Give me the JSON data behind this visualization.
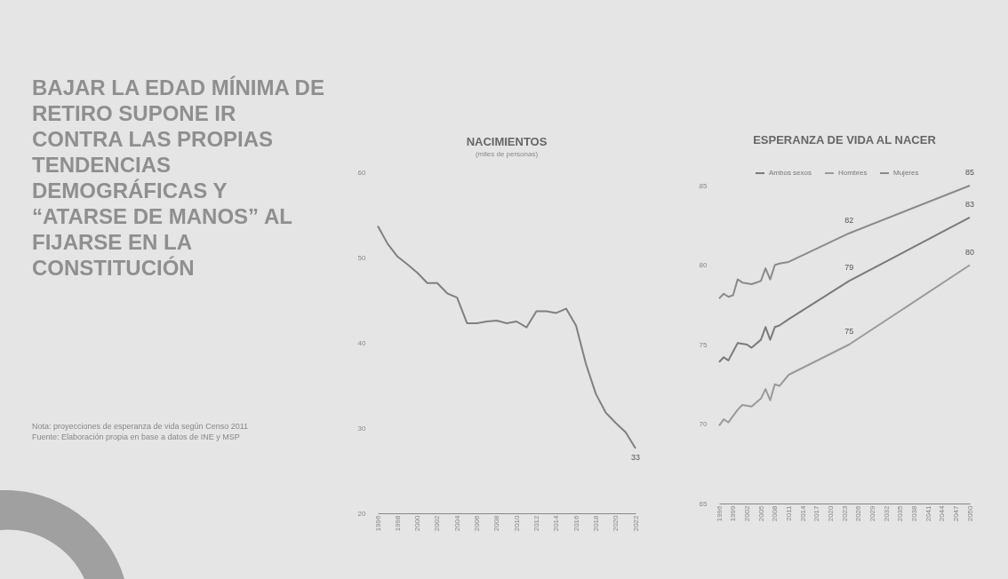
{
  "chart_data": [
    {
      "type": "other",
      "title": "BAJAR LA EDAD MÍNIMA DE RETIRO SUPONE IR CONTRA LAS PROPIAS TENDENCIAS DEMOGRÁFICAS Y “ATARSE DE MANOS” AL FIJARSE EN LA CONSTITUCIÓN",
      "annotations": [
        "Nota: proyecciones de esperanza de vida según Censo 2011",
        "Fuente: Elaboración propia en base a datos de INE y MSP"
      ]
    },
    {
      "type": "line",
      "title": "NACIMIENTOS",
      "subtitle": "(miles de personas)",
      "color": "#808080",
      "x": [
        1996,
        1997,
        1998,
        1999,
        2000,
        2001,
        2002,
        2003,
        2004,
        2005,
        2006,
        2007,
        2008,
        2009,
        2010,
        2011,
        2012,
        2013,
        2014,
        2015,
        2016,
        2017,
        2018,
        2019,
        2020,
        2021,
        2022
      ],
      "values": [
        53.7,
        51.6,
        50.1,
        49.2,
        48.2,
        47.0,
        47.0,
        45.8,
        45.3,
        42.3,
        42.3,
        42.5,
        42.6,
        42.3,
        42.5,
        41.8,
        43.7,
        43.7,
        43.5,
        44.0,
        42.0,
        37.5,
        34.0,
        31.8,
        30.6,
        29.5,
        27.6
      ],
      "xlim": [
        1996,
        2022
      ],
      "xticks": [
        1996,
        1998,
        2000,
        2002,
        2004,
        2006,
        2008,
        2010,
        2012,
        2014,
        2016,
        2018,
        2020,
        2022
      ],
      "ylim": [
        20,
        60
      ],
      "yticks": [
        20,
        30,
        40,
        50,
        60
      ],
      "annotations": [
        {
          "text": "33",
          "x": 2022,
          "y": 27.6
        }
      ]
    },
    {
      "type": "line",
      "title": "ESPERANZA DE VIDA AL NACER",
      "legend": "top",
      "xlim": [
        1996,
        2050
      ],
      "xticks": [
        1996,
        1999,
        2002,
        2005,
        2008,
        2011,
        2014,
        2017,
        2020,
        2023,
        2026,
        2029,
        2032,
        2035,
        2038,
        2041,
        2044,
        2047,
        2050
      ],
      "ylim": [
        65,
        85
      ],
      "yticks": [
        65,
        70,
        75,
        80,
        85
      ],
      "series": [
        {
          "name": "Ambos sexos",
          "color": "#7a7a7a",
          "x": [
            1996,
            1997,
            1998,
            2000,
            2002,
            2003,
            2005,
            2006,
            2007,
            2008,
            2009,
            2011,
            2024,
            2050
          ],
          "values": [
            73.9,
            74.2,
            74.0,
            75.1,
            75.0,
            74.8,
            75.3,
            76.1,
            75.3,
            76.1,
            76.2,
            76.6,
            79,
            83
          ],
          "value_labels": [
            null,
            null,
            null,
            null,
            null,
            null,
            null,
            null,
            null,
            null,
            null,
            null,
            "79",
            "83"
          ]
        },
        {
          "name": "Hombres",
          "color": "#9a9a9a",
          "x": [
            1996,
            1997,
            1998,
            2000,
            2001,
            2003,
            2005,
            2006,
            2007,
            2008,
            2009,
            2011,
            2024,
            2050
          ],
          "values": [
            69.9,
            70.3,
            70.1,
            70.9,
            71.2,
            71.1,
            71.6,
            72.2,
            71.5,
            72.5,
            72.4,
            73.1,
            75,
            80
          ],
          "value_labels": [
            null,
            null,
            null,
            null,
            null,
            null,
            null,
            null,
            null,
            null,
            null,
            null,
            "75",
            "80"
          ]
        },
        {
          "name": "Mujeres",
          "color": "#8a8a8a",
          "x": [
            1996,
            1997,
            1998,
            1999,
            2000,
            2001,
            2003,
            2004,
            2005,
            2006,
            2007,
            2008,
            2009,
            2011,
            2024,
            2050
          ],
          "values": [
            77.9,
            78.2,
            78.0,
            78.1,
            79.1,
            78.9,
            78.8,
            78.9,
            79.0,
            79.8,
            79.1,
            80.0,
            80.1,
            80.2,
            82,
            85
          ],
          "value_labels": [
            null,
            null,
            null,
            null,
            null,
            null,
            null,
            null,
            null,
            null,
            null,
            null,
            null,
            null,
            "82",
            "85"
          ]
        }
      ]
    }
  ]
}
